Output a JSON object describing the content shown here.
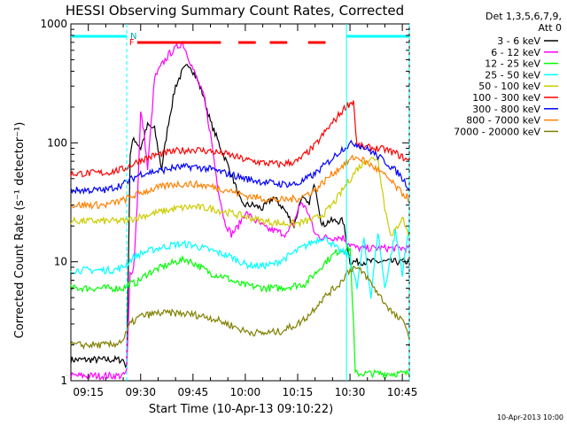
{
  "chart_data": {
    "type": "line",
    "title": "HESSI Observing Summary Count Rates, Corrected",
    "xlabel": "Start Time (10-Apr-13 09:10:22)",
    "ylabel": "Corrected Count Rate (s⁻¹ detector⁻¹)",
    "yscale": "log",
    "ylim": [
      1,
      1000
    ],
    "y_ticks": [
      {
        "value": 1,
        "label": "1"
      },
      {
        "value": 10,
        "label": "10"
      },
      {
        "value": 100,
        "label": "100"
      },
      {
        "value": 1000,
        "label": "1000"
      }
    ],
    "xlim": [
      "09:10:22",
      "10:47:00"
    ],
    "x_ticks": [
      "09:15",
      "09:30",
      "09:45",
      "10:00",
      "10:15",
      "10:30",
      "10:45"
    ],
    "legend_header": [
      "Det 1,3,5,6,7,9,",
      "Att 0"
    ],
    "legend_position": "right",
    "flag_labels": {
      "flare": "F",
      "night": "N"
    },
    "footer": "10-Apr-2013 10:00",
    "series": [
      {
        "name": "3 - 6 keV",
        "color": "#000000",
        "x": [
          "09:10",
          "09:25",
          "09:26",
          "09:27",
          "09:28",
          "09:29",
          "09:30",
          "09:32",
          "09:34",
          "09:36",
          "09:38",
          "09:40",
          "09:42",
          "09:44",
          "09:46",
          "09:48",
          "09:50",
          "09:53",
          "09:56",
          "09:59",
          "10:02",
          "10:05",
          "10:08",
          "10:11",
          "10:14",
          "10:16",
          "10:18",
          "10:20",
          "10:22",
          "10:24",
          "10:26",
          "10:28",
          "10:30",
          "10:32",
          "10:34",
          "10:36",
          "10:40",
          "10:47"
        ],
        "values": [
          1.5,
          1.5,
          1.3,
          80,
          110,
          100,
          90,
          140,
          130,
          60,
          150,
          300,
          400,
          460,
          350,
          250,
          150,
          90,
          55,
          30,
          30,
          28,
          35,
          28,
          20,
          35,
          30,
          45,
          20,
          22,
          22,
          22,
          10,
          10,
          10,
          10,
          10,
          10
        ]
      },
      {
        "name": "6 - 12 keV",
        "color": "#ff00ff",
        "x": [
          "09:10",
          "09:25",
          "09:26",
          "09:27",
          "09:28",
          "09:29",
          "09:30",
          "09:31",
          "09:32",
          "09:34",
          "09:36",
          "09:38",
          "09:40",
          "09:42",
          "09:44",
          "09:46",
          "09:48",
          "09:50",
          "09:52",
          "09:54",
          "09:56",
          "09:58",
          "10:00",
          "10:03",
          "10:06",
          "10:09",
          "10:12",
          "10:14",
          "10:16",
          "10:18",
          "10:20",
          "10:22",
          "10:24",
          "10:26",
          "10:28",
          "10:30",
          "10:32",
          "10:36",
          "10:47"
        ],
        "values": [
          1.1,
          1.1,
          1.2,
          8,
          9,
          30,
          180,
          120,
          60,
          350,
          450,
          550,
          620,
          700,
          500,
          350,
          250,
          120,
          45,
          22,
          17,
          20,
          26,
          22,
          19,
          18,
          17,
          22,
          32,
          26,
          17,
          16,
          16,
          16,
          16,
          14,
          13,
          13,
          13
        ]
      },
      {
        "name": "12 - 25 keV",
        "color": "#00ff00",
        "x": [
          "09:10",
          "09:25",
          "09:27",
          "09:29",
          "09:32",
          "09:36",
          "09:40",
          "09:43",
          "09:46",
          "09:50",
          "09:54",
          "09:58",
          "10:02",
          "10:06",
          "10:10",
          "10:14",
          "10:17",
          "10:20",
          "10:23",
          "10:26",
          "10:29",
          "10:30",
          "10:31",
          "10:31.5",
          "10:40",
          "10:47"
        ],
        "values": [
          6,
          6,
          6.5,
          6.7,
          8,
          9,
          10,
          10.5,
          9.5,
          8,
          7.5,
          6.5,
          6.2,
          6.0,
          6.0,
          6.3,
          6.5,
          8,
          10,
          12,
          13,
          13,
          3,
          1.15,
          1.15,
          1.15
        ]
      },
      {
        "name": "25 - 50 keV",
        "color": "#00ffff",
        "x": [
          "09:10",
          "09:22",
          "09:25",
          "09:28",
          "09:31",
          "09:35",
          "09:40",
          "09:44",
          "09:48",
          "09:52",
          "09:56",
          "10:00",
          "10:04",
          "10:08",
          "10:12",
          "10:16",
          "10:18",
          "10:20",
          "10:22",
          "10:24",
          "10:26",
          "10:28",
          "10:30",
          "10:32",
          "10:34",
          "10:36",
          "10:38",
          "10:40",
          "10:43",
          "10:45",
          "10:47"
        ],
        "values": [
          8.5,
          8.5,
          9,
          11,
          12,
          13,
          14,
          14,
          13,
          12,
          11,
          9.5,
          9.2,
          9.5,
          11,
          13,
          14,
          15,
          16,
          15,
          13,
          12,
          11,
          6,
          16,
          5,
          18,
          6,
          18,
          8,
          20
        ]
      },
      {
        "name": "50 - 100 keV",
        "color": "#cccc00",
        "x": [
          "09:10",
          "09:25",
          "09:30",
          "09:35",
          "09:40",
          "09:45",
          "09:50",
          "09:55",
          "10:00",
          "10:05",
          "10:10",
          "10:15",
          "10:20",
          "10:23",
          "10:26",
          "10:29",
          "10:32",
          "10:35",
          "10:38",
          "10:40",
          "10:42",
          "10:45",
          "10:47"
        ],
        "values": [
          22,
          22,
          24,
          26,
          28,
          29,
          28,
          26,
          24,
          22,
          21,
          21,
          23,
          26,
          33,
          45,
          60,
          72,
          75,
          28,
          16,
          24,
          16
        ]
      },
      {
        "name": "100 - 300 keV",
        "color": "#ff0000",
        "x": [
          "09:10",
          "09:20",
          "09:25",
          "09:30",
          "09:35",
          "09:40",
          "09:45",
          "09:50",
          "09:55",
          "10:00",
          "10:05",
          "10:10",
          "10:15",
          "10:20",
          "10:23",
          "10:26",
          "10:29",
          "10:31",
          "10:32",
          "10:34",
          "10:37",
          "10:40",
          "10:43",
          "10:47"
        ],
        "values": [
          55,
          56,
          60,
          72,
          80,
          85,
          88,
          85,
          80,
          72,
          68,
          66,
          70,
          95,
          125,
          160,
          205,
          225,
          95,
          92,
          90,
          88,
          82,
          70
        ]
      },
      {
        "name": "300 - 800 keV",
        "color": "#0000ff",
        "x": [
          "09:10",
          "09:20",
          "09:25",
          "09:30",
          "09:35",
          "09:40",
          "09:45",
          "09:50",
          "09:55",
          "10:00",
          "10:05",
          "10:10",
          "10:15",
          "10:20",
          "10:24",
          "10:28",
          "10:31",
          "10:33",
          "10:36",
          "10:40",
          "10:44",
          "10:47"
        ],
        "values": [
          40,
          40,
          45,
          55,
          58,
          62,
          63,
          60,
          55,
          50,
          47,
          45,
          45,
          55,
          70,
          90,
          100,
          95,
          85,
          70,
          55,
          42
        ]
      },
      {
        "name": "800 - 7000 keV",
        "color": "#ff8000",
        "x": [
          "09:10",
          "09:20",
          "09:25",
          "09:30",
          "09:35",
          "09:40",
          "09:45",
          "09:50",
          "09:55",
          "10:00",
          "10:05",
          "10:10",
          "10:15",
          "10:20",
          "10:24",
          "10:28",
          "10:31",
          "10:33",
          "10:37",
          "10:41",
          "10:44",
          "10:47"
        ],
        "values": [
          30,
          30,
          33,
          38,
          42,
          45,
          45,
          43,
          40,
          36,
          34,
          33,
          34,
          40,
          52,
          65,
          75,
          74,
          62,
          50,
          40,
          34
        ]
      },
      {
        "name": "7000 - 20000 keV",
        "color": "#808000",
        "x": [
          "09:10",
          "09:22",
          "09:25",
          "09:27",
          "09:30",
          "09:35",
          "09:40",
          "09:45",
          "09:50",
          "09:55",
          "10:00",
          "10:05",
          "10:10",
          "10:15",
          "10:18",
          "10:21",
          "10:24",
          "10:27",
          "10:29",
          "10:31",
          "10:34",
          "10:37",
          "10:40",
          "10:43",
          "10:46",
          "10:47"
        ],
        "values": [
          2,
          2,
          2.2,
          3,
          3.5,
          3.7,
          3.7,
          3.6,
          3.4,
          3.0,
          2.6,
          2.5,
          2.6,
          3.0,
          3.5,
          4.5,
          5.5,
          6.5,
          8,
          9,
          8,
          6,
          4.5,
          3.5,
          3,
          2.2
        ]
      }
    ],
    "flare_bars_x": [
      [
        "09:29",
        "09:53"
      ],
      [
        "09:58",
        "10:03"
      ],
      [
        "10:07",
        "10:12"
      ],
      [
        "10:18",
        "10:23"
      ]
    ],
    "night_bars_x": [
      [
        "09:10",
        "09:26"
      ],
      [
        "10:29",
        "10:47"
      ]
    ],
    "cyan_vertical_lines_x": [
      "09:26",
      "10:29",
      "10:47"
    ]
  }
}
